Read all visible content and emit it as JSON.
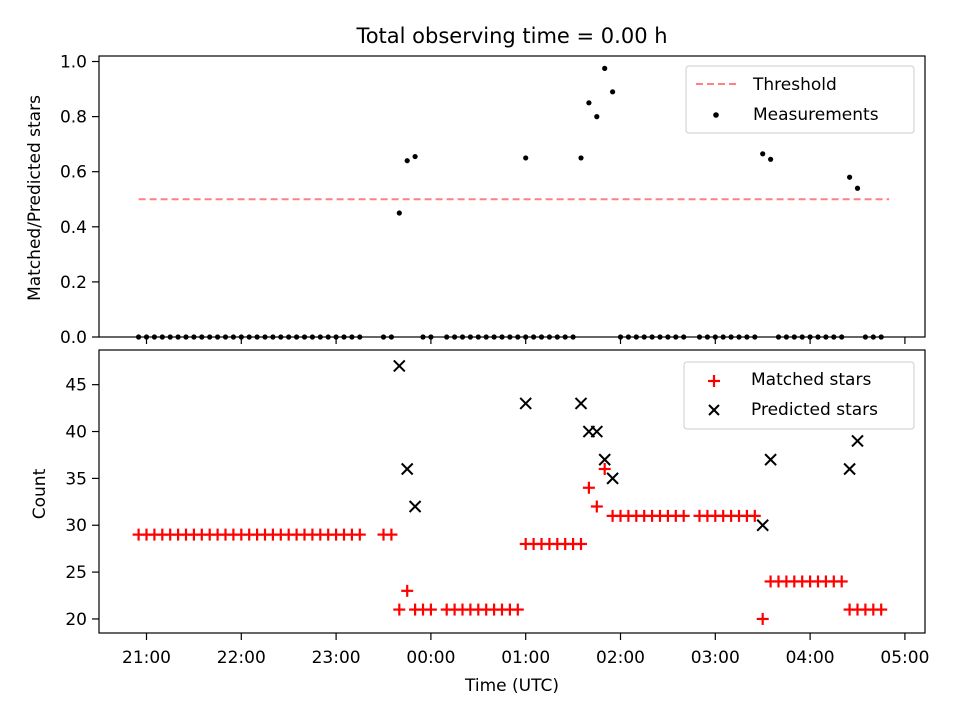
{
  "chart_data": [
    {
      "type": "scatter",
      "title": "Total observing time = 0.00 h",
      "ylabel": "Matched/Predicted stars",
      "xlabel": "",
      "ylim": [
        0,
        1.02
      ],
      "yticks": [
        "0.0",
        "0.2",
        "0.4",
        "0.6",
        "0.8",
        "1.0"
      ],
      "ytick_values": [
        0,
        0.2,
        0.4,
        0.6,
        0.8,
        1.0
      ],
      "xticks_positions": [
        "21:00",
        "22:00",
        "23:00",
        "00:00",
        "01:00",
        "02:00",
        "03:00",
        "04:00",
        "05:00"
      ],
      "legend": {
        "position": "top-right",
        "entries": [
          "Threshold",
          "Measurements"
        ]
      },
      "threshold": {
        "name": "Threshold",
        "value": 0.5,
        "x_start": "20:55",
        "x_end": "04:50",
        "color": "#ff8080"
      },
      "measurements": {
        "name": "Measurements",
        "color": "#000000",
        "points": [
          [
            "20:55",
            0
          ],
          [
            "21:00",
            0
          ],
          [
            "21:05",
            0
          ],
          [
            "21:10",
            0
          ],
          [
            "21:15",
            0
          ],
          [
            "21:20",
            0
          ],
          [
            "21:25",
            0
          ],
          [
            "21:30",
            0
          ],
          [
            "21:35",
            0
          ],
          [
            "21:40",
            0
          ],
          [
            "21:45",
            0
          ],
          [
            "21:50",
            0
          ],
          [
            "21:55",
            0
          ],
          [
            "22:00",
            0
          ],
          [
            "22:05",
            0
          ],
          [
            "22:10",
            0
          ],
          [
            "22:15",
            0
          ],
          [
            "22:20",
            0
          ],
          [
            "22:25",
            0
          ],
          [
            "22:30",
            0
          ],
          [
            "22:35",
            0
          ],
          [
            "22:40",
            0
          ],
          [
            "22:45",
            0
          ],
          [
            "22:50",
            0
          ],
          [
            "22:55",
            0
          ],
          [
            "23:00",
            0
          ],
          [
            "23:05",
            0
          ],
          [
            "23:10",
            0
          ],
          [
            "23:15",
            0
          ],
          [
            "23:30",
            0
          ],
          [
            "23:35",
            0
          ],
          [
            "23:40",
            0.45
          ],
          [
            "23:45",
            0.64
          ],
          [
            "23:50",
            0.655
          ],
          [
            "23:55",
            0
          ],
          [
            "00:00",
            0
          ],
          [
            "00:10",
            0
          ],
          [
            "00:15",
            0
          ],
          [
            "00:20",
            0
          ],
          [
            "00:25",
            0
          ],
          [
            "00:30",
            0
          ],
          [
            "00:35",
            0
          ],
          [
            "00:40",
            0
          ],
          [
            "00:45",
            0
          ],
          [
            "00:50",
            0
          ],
          [
            "00:55",
            0
          ],
          [
            "01:00",
            0.65
          ],
          [
            "01:00",
            0
          ],
          [
            "01:05",
            0
          ],
          [
            "01:10",
            0
          ],
          [
            "01:15",
            0
          ],
          [
            "01:20",
            0
          ],
          [
            "01:25",
            0
          ],
          [
            "01:30",
            0
          ],
          [
            "01:35",
            0.65
          ],
          [
            "01:40",
            0.85
          ],
          [
            "01:45",
            0.8
          ],
          [
            "01:50",
            0.975
          ],
          [
            "01:55",
            0.89
          ],
          [
            "02:00",
            0
          ],
          [
            "02:05",
            0
          ],
          [
            "02:10",
            0
          ],
          [
            "02:15",
            0
          ],
          [
            "02:20",
            0
          ],
          [
            "02:25",
            0
          ],
          [
            "02:30",
            0
          ],
          [
            "02:35",
            0
          ],
          [
            "02:40",
            0
          ],
          [
            "02:50",
            0
          ],
          [
            "02:55",
            0
          ],
          [
            "03:00",
            0
          ],
          [
            "03:05",
            0
          ],
          [
            "03:10",
            0
          ],
          [
            "03:15",
            0
          ],
          [
            "03:20",
            0
          ],
          [
            "03:25",
            0
          ],
          [
            "03:30",
            0.665
          ],
          [
            "03:35",
            0.645
          ],
          [
            "03:40",
            0
          ],
          [
            "03:45",
            0
          ],
          [
            "03:50",
            0
          ],
          [
            "03:55",
            0
          ],
          [
            "04:00",
            0
          ],
          [
            "04:05",
            0
          ],
          [
            "04:10",
            0
          ],
          [
            "04:15",
            0
          ],
          [
            "04:20",
            0
          ],
          [
            "04:25",
            0.58
          ],
          [
            "04:30",
            0.54
          ],
          [
            "04:35",
            0
          ],
          [
            "04:40",
            0
          ],
          [
            "04:45",
            0
          ]
        ]
      }
    },
    {
      "type": "scatter",
      "title": "",
      "ylabel": "Count",
      "xlabel": "Time (UTC)",
      "ylim": [
        18.5,
        48.7
      ],
      "yticks": [
        "20",
        "25",
        "30",
        "35",
        "40",
        "45"
      ],
      "ytick_values": [
        20,
        25,
        30,
        35,
        40,
        45
      ],
      "xticks": [
        "21:00",
        "22:00",
        "23:00",
        "00:00",
        "01:00",
        "02:00",
        "03:00",
        "04:00",
        "05:00"
      ],
      "legend": {
        "position": "top-right",
        "entries": [
          "Matched stars",
          "Predicted stars"
        ]
      },
      "series": [
        {
          "name": "Matched stars",
          "marker": "plus",
          "color": "#ff0000",
          "points": [
            [
              "20:55",
              29
            ],
            [
              "21:00",
              29
            ],
            [
              "21:05",
              29
            ],
            [
              "21:10",
              29
            ],
            [
              "21:15",
              29
            ],
            [
              "21:20",
              29
            ],
            [
              "21:25",
              29
            ],
            [
              "21:30",
              29
            ],
            [
              "21:35",
              29
            ],
            [
              "21:40",
              29
            ],
            [
              "21:45",
              29
            ],
            [
              "21:50",
              29
            ],
            [
              "21:55",
              29
            ],
            [
              "22:00",
              29
            ],
            [
              "22:05",
              29
            ],
            [
              "22:10",
              29
            ],
            [
              "22:15",
              29
            ],
            [
              "22:20",
              29
            ],
            [
              "22:25",
              29
            ],
            [
              "22:30",
              29
            ],
            [
              "22:35",
              29
            ],
            [
              "22:40",
              29
            ],
            [
              "22:45",
              29
            ],
            [
              "22:50",
              29
            ],
            [
              "22:55",
              29
            ],
            [
              "23:00",
              29
            ],
            [
              "23:05",
              29
            ],
            [
              "23:10",
              29
            ],
            [
              "23:15",
              29
            ],
            [
              "23:30",
              29
            ],
            [
              "23:35",
              29
            ],
            [
              "23:40",
              21
            ],
            [
              "23:45",
              23
            ],
            [
              "23:50",
              21
            ],
            [
              "23:55",
              21
            ],
            [
              "00:00",
              21
            ],
            [
              "00:10",
              21
            ],
            [
              "00:15",
              21
            ],
            [
              "00:20",
              21
            ],
            [
              "00:25",
              21
            ],
            [
              "00:30",
              21
            ],
            [
              "00:35",
              21
            ],
            [
              "00:40",
              21
            ],
            [
              "00:45",
              21
            ],
            [
              "00:50",
              21
            ],
            [
              "00:55",
              21
            ],
            [
              "01:00",
              28
            ],
            [
              "01:05",
              28
            ],
            [
              "01:10",
              28
            ],
            [
              "01:15",
              28
            ],
            [
              "01:20",
              28
            ],
            [
              "01:25",
              28
            ],
            [
              "01:30",
              28
            ],
            [
              "01:35",
              28
            ],
            [
              "01:40",
              34
            ],
            [
              "01:45",
              32
            ],
            [
              "01:50",
              36
            ],
            [
              "01:55",
              31
            ],
            [
              "02:00",
              31
            ],
            [
              "02:05",
              31
            ],
            [
              "02:10",
              31
            ],
            [
              "02:15",
              31
            ],
            [
              "02:20",
              31
            ],
            [
              "02:25",
              31
            ],
            [
              "02:30",
              31
            ],
            [
              "02:35",
              31
            ],
            [
              "02:40",
              31
            ],
            [
              "02:50",
              31
            ],
            [
              "02:55",
              31
            ],
            [
              "03:00",
              31
            ],
            [
              "03:05",
              31
            ],
            [
              "03:10",
              31
            ],
            [
              "03:15",
              31
            ],
            [
              "03:20",
              31
            ],
            [
              "03:25",
              31
            ],
            [
              "03:30",
              20
            ],
            [
              "03:35",
              24
            ],
            [
              "03:40",
              24
            ],
            [
              "03:45",
              24
            ],
            [
              "03:50",
              24
            ],
            [
              "03:55",
              24
            ],
            [
              "04:00",
              24
            ],
            [
              "04:05",
              24
            ],
            [
              "04:10",
              24
            ],
            [
              "04:15",
              24
            ],
            [
              "04:20",
              24
            ],
            [
              "04:25",
              21
            ],
            [
              "04:30",
              21
            ],
            [
              "04:35",
              21
            ],
            [
              "04:40",
              21
            ],
            [
              "04:45",
              21
            ]
          ]
        },
        {
          "name": "Predicted stars",
          "marker": "x",
          "color": "#000000",
          "points": [
            [
              "23:40",
              47
            ],
            [
              "23:45",
              36
            ],
            [
              "23:50",
              32
            ],
            [
              "01:00",
              43
            ],
            [
              "01:35",
              43
            ],
            [
              "01:40",
              40
            ],
            [
              "01:45",
              40
            ],
            [
              "01:50",
              37
            ],
            [
              "01:55",
              35
            ],
            [
              "03:30",
              30
            ],
            [
              "03:35",
              37
            ],
            [
              "04:25",
              36
            ],
            [
              "04:30",
              39
            ]
          ]
        }
      ]
    }
  ]
}
